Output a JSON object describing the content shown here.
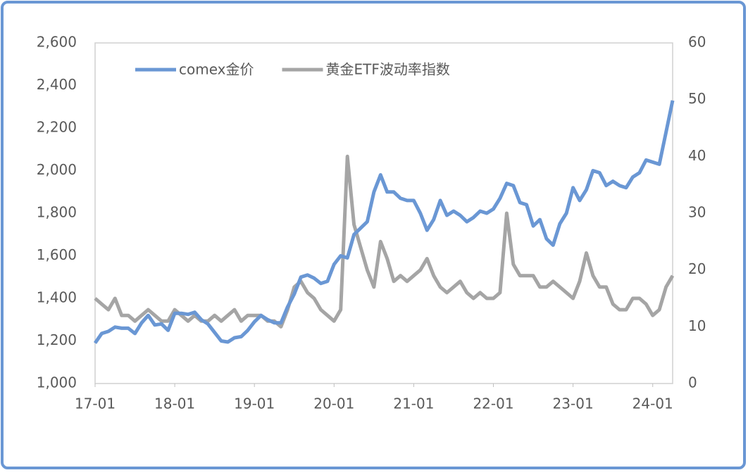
{
  "chart_data": {
    "type": "line",
    "categories": [
      "17-01",
      null,
      null,
      null,
      null,
      null,
      null,
      null,
      null,
      null,
      null,
      null,
      "18-01",
      null,
      null,
      null,
      null,
      null,
      null,
      null,
      null,
      null,
      null,
      null,
      "19-01",
      null,
      null,
      null,
      null,
      null,
      null,
      null,
      null,
      null,
      null,
      null,
      "20-01",
      null,
      null,
      null,
      null,
      null,
      null,
      null,
      null,
      null,
      null,
      null,
      "21-01",
      null,
      null,
      null,
      null,
      null,
      null,
      null,
      null,
      null,
      null,
      null,
      "22-01",
      null,
      null,
      null,
      null,
      null,
      null,
      null,
      null,
      null,
      null,
      null,
      "23-01",
      null,
      null,
      null,
      null,
      null,
      null,
      null,
      null,
      null,
      null,
      null,
      "24-01",
      null,
      null,
      null
    ],
    "series": [
      {
        "name": "comex金价",
        "color": "#6a97d4",
        "values": [
          1190,
          1235,
          1245,
          1265,
          1260,
          1260,
          1235,
          1285,
          1320,
          1275,
          1280,
          1250,
          1330,
          1330,
          1325,
          1335,
          1300,
          1280,
          1240,
          1200,
          1195,
          1215,
          1220,
          1250,
          1290,
          1320,
          1300,
          1285,
          1285,
          1360,
          1420,
          1500,
          1510,
          1495,
          1470,
          1480,
          1560,
          1600,
          1590,
          1700,
          1730,
          1760,
          1900,
          1980,
          1900,
          1900,
          1870,
          1860,
          1860,
          1800,
          1720,
          1770,
          1860,
          1790,
          1810,
          1790,
          1760,
          1780,
          1810,
          1800,
          1820,
          1870,
          1940,
          1930,
          1850,
          1840,
          1740,
          1770,
          1680,
          1650,
          1750,
          1800,
          1920,
          1860,
          1910,
          2000,
          1990,
          1930,
          1950,
          1930,
          1920,
          1970,
          1990,
          2050,
          2040,
          2030,
          2180,
          2330
        ]
      },
      {
        "name": "黄金ETF波动率指数",
        "color": "#a5a5a5",
        "axis": "y2",
        "values": [
          15,
          14,
          13,
          15,
          12,
          12,
          11,
          12,
          13,
          12,
          11,
          11,
          13,
          12,
          11,
          12,
          11,
          11,
          12,
          11,
          12,
          13,
          11,
          12,
          12,
          12,
          11,
          11,
          10,
          13,
          17,
          18,
          16,
          15,
          13,
          12,
          11,
          13,
          40,
          28,
          24,
          20,
          17,
          25,
          22,
          18,
          19,
          18,
          19,
          20,
          22,
          19,
          17,
          16,
          17,
          18,
          16,
          15,
          16,
          15,
          15,
          16,
          30,
          21,
          19,
          19,
          19,
          17,
          17,
          18,
          17,
          16,
          15,
          18,
          23,
          19,
          17,
          17,
          14,
          13,
          13,
          15,
          15,
          14,
          12,
          13,
          17,
          19
        ]
      }
    ],
    "ylim": [
      1000,
      2600
    ],
    "yticks": [
      {
        "value": 1000,
        "label": "1,000"
      },
      {
        "value": 1200,
        "label": "1,200"
      },
      {
        "value": 1400,
        "label": "1,400"
      },
      {
        "value": 1600,
        "label": "1,600"
      },
      {
        "value": 1800,
        "label": "1,800"
      },
      {
        "value": 2000,
        "label": "2,000"
      },
      {
        "value": 2200,
        "label": "2,200"
      },
      {
        "value": 2400,
        "label": "2,400"
      },
      {
        "value": 2600,
        "label": "2,600"
      }
    ],
    "y2lim": [
      0,
      60
    ],
    "y2ticks": [
      0,
      10,
      20,
      30,
      40,
      50,
      60
    ],
    "legend": "top-left"
  }
}
